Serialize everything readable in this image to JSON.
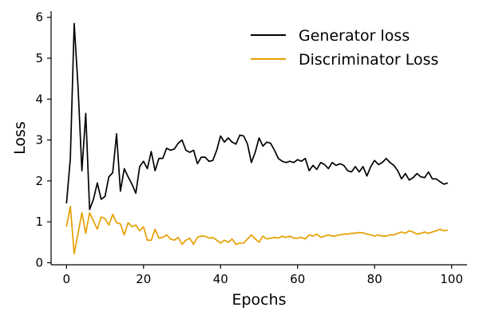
{
  "chart_data": {
    "type": "line",
    "title": "",
    "xlabel": "Epochs",
    "ylabel": "Loss",
    "xlim": [
      -4,
      104
    ],
    "ylim": [
      -0.05,
      6.15
    ],
    "xticks": [
      0,
      20,
      40,
      60,
      80,
      100
    ],
    "yticks": [
      0,
      1,
      2,
      3,
      4,
      5,
      6
    ],
    "grid": false,
    "legend_position": "top-right",
    "x": [
      0,
      1,
      2,
      3,
      4,
      5,
      6,
      7,
      8,
      9,
      10,
      11,
      12,
      13,
      14,
      15,
      16,
      17,
      18,
      19,
      20,
      21,
      22,
      23,
      24,
      25,
      26,
      27,
      28,
      29,
      30,
      31,
      32,
      33,
      34,
      35,
      36,
      37,
      38,
      39,
      40,
      41,
      42,
      43,
      44,
      45,
      46,
      47,
      48,
      49,
      50,
      51,
      52,
      53,
      54,
      55,
      56,
      57,
      58,
      59,
      60,
      61,
      62,
      63,
      64,
      65,
      66,
      67,
      68,
      69,
      70,
      71,
      72,
      73,
      74,
      75,
      76,
      77,
      78,
      79,
      80,
      81,
      82,
      83,
      84,
      85,
      86,
      87,
      88,
      89,
      90,
      91,
      92,
      93,
      94,
      95,
      96,
      97,
      98,
      99
    ],
    "series": [
      {
        "name": "Generator loss",
        "color": "#000000",
        "values": [
          1.45,
          2.55,
          5.85,
          4.3,
          2.25,
          3.65,
          1.3,
          1.55,
          1.95,
          1.55,
          1.62,
          2.1,
          2.2,
          3.15,
          1.75,
          2.3,
          2.1,
          1.92,
          1.7,
          2.35,
          2.48,
          2.3,
          2.72,
          2.25,
          2.55,
          2.55,
          2.8,
          2.75,
          2.78,
          2.92,
          3.0,
          2.75,
          2.7,
          2.75,
          2.42,
          2.58,
          2.58,
          2.48,
          2.5,
          2.75,
          3.1,
          2.95,
          3.05,
          2.95,
          2.9,
          3.12,
          3.1,
          2.9,
          2.45,
          2.7,
          3.05,
          2.85,
          2.95,
          2.92,
          2.75,
          2.55,
          2.48,
          2.45,
          2.48,
          2.45,
          2.52,
          2.48,
          2.55,
          2.25,
          2.38,
          2.28,
          2.45,
          2.4,
          2.3,
          2.45,
          2.38,
          2.42,
          2.38,
          2.25,
          2.22,
          2.35,
          2.22,
          2.35,
          2.12,
          2.35,
          2.5,
          2.4,
          2.45,
          2.55,
          2.45,
          2.38,
          2.25,
          2.05,
          2.18,
          2.02,
          2.08,
          2.18,
          2.1,
          2.08,
          2.22,
          2.05,
          2.05,
          1.98,
          1.92,
          1.95
        ]
      },
      {
        "name": "Discriminator Loss",
        "color": "#E69F00",
        "values": [
          0.88,
          1.38,
          0.22,
          0.72,
          1.22,
          0.72,
          1.22,
          1.02,
          0.82,
          1.12,
          1.08,
          0.92,
          1.18,
          0.98,
          0.95,
          0.68,
          0.98,
          0.88,
          0.92,
          0.78,
          0.88,
          0.55,
          0.55,
          0.82,
          0.6,
          0.62,
          0.68,
          0.58,
          0.55,
          0.62,
          0.45,
          0.55,
          0.6,
          0.45,
          0.62,
          0.65,
          0.65,
          0.6,
          0.62,
          0.55,
          0.48,
          0.55,
          0.5,
          0.58,
          0.45,
          0.48,
          0.48,
          0.58,
          0.68,
          0.58,
          0.5,
          0.65,
          0.58,
          0.6,
          0.62,
          0.6,
          0.65,
          0.62,
          0.65,
          0.6,
          0.6,
          0.62,
          0.58,
          0.68,
          0.65,
          0.7,
          0.62,
          0.65,
          0.68,
          0.65,
          0.66,
          0.68,
          0.7,
          0.7,
          0.72,
          0.72,
          0.74,
          0.73,
          0.7,
          0.68,
          0.65,
          0.68,
          0.65,
          0.65,
          0.68,
          0.68,
          0.72,
          0.75,
          0.72,
          0.78,
          0.75,
          0.7,
          0.72,
          0.75,
          0.72,
          0.75,
          0.78,
          0.82,
          0.78,
          0.8
        ]
      }
    ]
  }
}
